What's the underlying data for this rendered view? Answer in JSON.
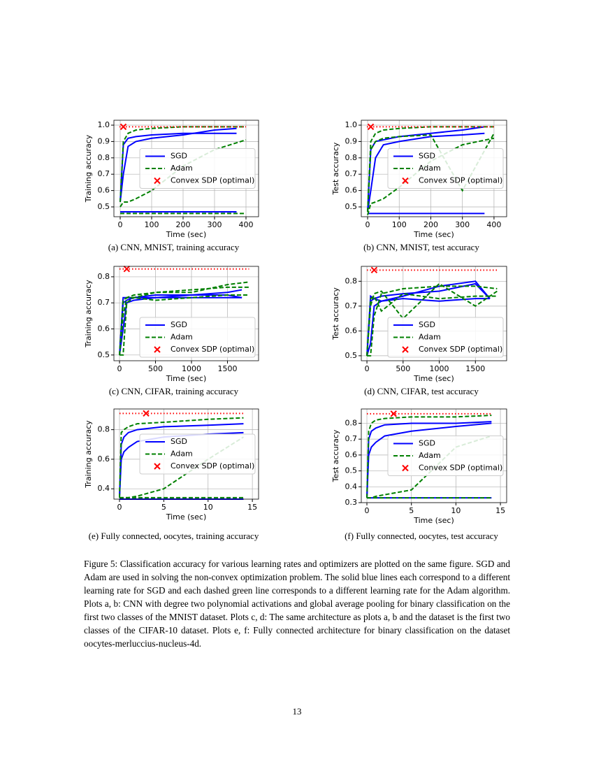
{
  "chart_data": [
    {
      "type": "line",
      "caption": "(a) CNN, MNIST, training accuracy",
      "xlabel": "Time (sec)",
      "ylabel": "Training accuracy",
      "xlim": [
        -20,
        440
      ],
      "ylim": [
        0.44,
        1.03
      ],
      "xticks": [
        0,
        100,
        200,
        300,
        400
      ],
      "yticks": [
        0.5,
        0.6,
        0.7,
        0.8,
        0.9,
        {
          "value": 1,
          "label": "1.0"
        }
      ],
      "grid": true,
      "legend": "center right",
      "series": [
        {
          "name": "SGD",
          "color": "#0000ff",
          "style": "solid",
          "x": [
            0,
            10,
            25,
            50,
            100,
            200,
            300,
            370
          ],
          "runs": [
            [
              0.53,
              0.88,
              0.92,
              0.93,
              0.94,
              0.95,
              0.95,
              0.95
            ],
            [
              0.53,
              0.7,
              0.87,
              0.9,
              0.92,
              0.94,
              0.97,
              0.98
            ],
            [
              0.47,
              0.47,
              0.47,
              0.47,
              0.47,
              0.47,
              0.47,
              0.47
            ]
          ]
        },
        {
          "name": "Adam",
          "color": "#008000",
          "style": "dashed",
          "x": [
            0,
            10,
            25,
            50,
            100,
            200,
            300,
            400
          ],
          "runs": [
            [
              0.53,
              0.9,
              0.95,
              0.97,
              0.98,
              0.99,
              0.99,
              0.99
            ],
            [
              0.5,
              0.53,
              0.53,
              0.55,
              0.6,
              0.75,
              0.85,
              0.91
            ],
            [
              0.46,
              0.46,
              0.46,
              0.46,
              0.46,
              0.46,
              0.46,
              0.46
            ]
          ]
        },
        {
          "name": "Convex SDP (optimal)",
          "color": "#ff0000",
          "marker": "x",
          "x": [
            10
          ],
          "values": [
            0.99
          ]
        }
      ]
    },
    {
      "type": "line",
      "caption": "(b) CNN, MNIST, test accuracy",
      "xlabel": "Time (sec)",
      "ylabel": "Test accuracy",
      "xlim": [
        -20,
        440
      ],
      "ylim": [
        0.44,
        1.03
      ],
      "xticks": [
        0,
        100,
        200,
        300,
        400
      ],
      "yticks": [
        0.5,
        0.6,
        0.7,
        0.8,
        0.9,
        {
          "value": 1,
          "label": "1.0"
        }
      ],
      "grid": true,
      "legend": "center right",
      "series": [
        {
          "name": "SGD",
          "color": "#0000ff",
          "style": "solid",
          "x": [
            0,
            10,
            25,
            50,
            100,
            200,
            300,
            370
          ],
          "runs": [
            [
              0.47,
              0.85,
              0.9,
              0.91,
              0.93,
              0.95,
              0.97,
              0.99
            ],
            [
              0.47,
              0.6,
              0.8,
              0.88,
              0.9,
              0.93,
              0.94,
              0.95
            ],
            [
              0.46,
              0.46,
              0.46,
              0.46,
              0.46,
              0.46,
              0.46,
              0.46
            ]
          ]
        },
        {
          "name": "Adam",
          "color": "#008000",
          "style": "dashed",
          "x": [
            0,
            10,
            25,
            50,
            100,
            200,
            300,
            400
          ],
          "runs": [
            [
              0.47,
              0.9,
              0.95,
              0.97,
              0.98,
              0.99,
              0.99,
              0.99
            ],
            [
              0.45,
              0.52,
              0.53,
              0.55,
              0.62,
              0.78,
              0.88,
              0.92
            ],
            [
              0.47,
              0.85,
              0.9,
              0.92,
              0.93,
              0.94,
              0.6,
              0.95
            ]
          ]
        },
        {
          "name": "Convex SDP (optimal)",
          "color": "#ff0000",
          "marker": "x",
          "x": [
            10
          ],
          "values": [
            0.99
          ]
        }
      ]
    },
    {
      "type": "line",
      "caption": "(c) CNN, CIFAR, training accuracy",
      "xlabel": "Time (sec)",
      "ylabel": "Training accuracy",
      "xlim": [
        -78,
        1932
      ],
      "ylim": [
        0.478,
        0.84
      ],
      "xticks": [
        0,
        500,
        1000,
        1500
      ],
      "yticks": [
        0.5,
        0.6,
        0.7,
        0.8
      ],
      "grid": true,
      "legend": "lower right",
      "series": [
        {
          "name": "SGD",
          "color": "#0000ff",
          "style": "solid",
          "x": [
            0,
            50,
            100,
            200,
            500,
            1000,
            1500,
            1700
          ],
          "runs": [
            [
              0.5,
              0.7,
              0.71,
              0.72,
              0.72,
              0.72,
              0.72,
              0.72
            ],
            [
              0.5,
              0.6,
              0.7,
              0.71,
              0.72,
              0.73,
              0.74,
              0.75
            ],
            [
              0.5,
              0.72,
              0.72,
              0.72,
              0.73,
              0.73,
              0.73,
              0.72
            ]
          ]
        },
        {
          "name": "Adam",
          "color": "#008000",
          "style": "dashed",
          "x": [
            0,
            50,
            100,
            200,
            500,
            1000,
            1500,
            1800
          ],
          "runs": [
            [
              0.5,
              0.5,
              0.7,
              0.72,
              0.74,
              0.75,
              0.76,
              0.76
            ],
            [
              0.5,
              0.65,
              0.72,
              0.73,
              0.74,
              0.74,
              0.77,
              0.78
            ],
            [
              0.5,
              0.71,
              0.72,
              0.72,
              0.71,
              0.72,
              0.73,
              0.73
            ]
          ]
        },
        {
          "name": "Convex SDP (optimal)",
          "color": "#ff0000",
          "marker": "x",
          "x": [
            100
          ],
          "values": [
            0.83
          ]
        }
      ]
    },
    {
      "type": "line",
      "caption": "(d) CNN, CIFAR, test accuracy",
      "xlabel": "Time (sec)",
      "ylabel": "Test accuracy",
      "xlim": [
        -78,
        1932
      ],
      "ylim": [
        0.48,
        0.86
      ],
      "xticks": [
        0,
        500,
        1000,
        1500
      ],
      "yticks": [
        0.5,
        0.6,
        0.7,
        0.8
      ],
      "grid": true,
      "legend": "lower right",
      "series": [
        {
          "name": "SGD",
          "color": "#0000ff",
          "style": "solid",
          "x": [
            0,
            50,
            100,
            200,
            500,
            1000,
            1500,
            1700
          ],
          "runs": [
            [
              0.5,
              0.72,
              0.73,
              0.74,
              0.75,
              0.76,
              0.79,
              0.73
            ],
            [
              0.5,
              0.55,
              0.7,
              0.72,
              0.74,
              0.78,
              0.8,
              0.73
            ],
            [
              0.5,
              0.74,
              0.73,
              0.72,
              0.73,
              0.72,
              0.73,
              0.73
            ]
          ]
        },
        {
          "name": "Adam",
          "color": "#008000",
          "style": "dashed",
          "x": [
            0,
            50,
            100,
            200,
            500,
            1000,
            1500,
            1800
          ],
          "runs": [
            [
              0.5,
              0.5,
              0.66,
              0.75,
              0.77,
              0.78,
              0.78,
              0.77
            ],
            [
              0.5,
              0.7,
              0.75,
              0.76,
              0.65,
              0.79,
              0.7,
              0.76
            ],
            [
              0.5,
              0.73,
              0.74,
              0.68,
              0.75,
              0.73,
              0.74,
              0.74
            ]
          ]
        },
        {
          "name": "Convex SDP (optimal)",
          "color": "#ff0000",
          "marker": "x",
          "x": [
            100
          ],
          "values": [
            0.845
          ]
        }
      ]
    },
    {
      "type": "line",
      "caption": "(e) Fully connected, oocytes, training accuracy",
      "xlabel": "Time (sec)",
      "ylabel": "Training accuracy",
      "xlim": [
        -0.63,
        15.7
      ],
      "ylim": [
        0.33,
        0.94
      ],
      "xticks": [
        0,
        5,
        10,
        15
      ],
      "yticks": [
        0.4,
        0.6,
        0.8
      ],
      "grid": true,
      "legend": "center right",
      "series": [
        {
          "name": "SGD",
          "color": "#0000ff",
          "style": "solid",
          "x": [
            0,
            0.2,
            0.5,
            1,
            2,
            5,
            10,
            14
          ],
          "runs": [
            [
              0.34,
              0.7,
              0.75,
              0.78,
              0.8,
              0.82,
              0.83,
              0.84
            ],
            [
              0.34,
              0.6,
              0.65,
              0.68,
              0.72,
              0.75,
              0.77,
              0.78
            ],
            [
              0.33,
              0.33,
              0.33,
              0.33,
              0.33,
              0.33,
              0.33,
              0.33
            ]
          ]
        },
        {
          "name": "Adam",
          "color": "#008000",
          "style": "dashed",
          "x": [
            0,
            0.2,
            0.5,
            1,
            2,
            5,
            10,
            14
          ],
          "runs": [
            [
              0.34,
              0.78,
              0.8,
              0.82,
              0.84,
              0.85,
              0.87,
              0.88
            ],
            [
              0.34,
              0.34,
              0.34,
              0.34,
              0.35,
              0.4,
              0.6,
              0.75
            ],
            [
              0.34,
              0.34,
              0.34,
              0.34,
              0.34,
              0.34,
              0.34,
              0.34
            ]
          ]
        },
        {
          "name": "Convex SDP (optimal)",
          "color": "#ff0000",
          "marker": "x",
          "x": [
            3
          ],
          "values": [
            0.91
          ]
        }
      ]
    },
    {
      "type": "line",
      "caption": "(f) Fully connected, oocytes, test accuracy",
      "xlabel": "Time (sec)",
      "ylabel": "Test accuracy",
      "xlim": [
        -0.63,
        15.7
      ],
      "ylim": [
        0.3,
        0.89
      ],
      "xticks": [
        0,
        5,
        10,
        15
      ],
      "yticks": [
        0.3,
        0.4,
        0.5,
        0.6,
        0.7,
        0.8
      ],
      "grid": true,
      "legend": "center right",
      "series": [
        {
          "name": "SGD",
          "color": "#0000ff",
          "style": "solid",
          "x": [
            0,
            0.2,
            0.5,
            1,
            2,
            5,
            10,
            14
          ],
          "runs": [
            [
              0.33,
              0.7,
              0.75,
              0.77,
              0.79,
              0.8,
              0.8,
              0.81
            ],
            [
              0.33,
              0.6,
              0.65,
              0.68,
              0.72,
              0.75,
              0.78,
              0.8
            ],
            [
              0.33,
              0.33,
              0.33,
              0.33,
              0.33,
              0.33,
              0.33,
              0.33
            ]
          ]
        },
        {
          "name": "Adam",
          "color": "#008000",
          "style": "dashed",
          "x": [
            0,
            0.2,
            0.5,
            1,
            2,
            5,
            10,
            14
          ],
          "runs": [
            [
              0.33,
              0.75,
              0.8,
              0.82,
              0.83,
              0.84,
              0.84,
              0.85
            ],
            [
              0.33,
              0.33,
              0.33,
              0.34,
              0.35,
              0.38,
              0.65,
              0.72
            ],
            [
              0.33,
              0.33,
              0.33,
              0.33,
              0.33,
              0.33,
              0.33,
              0.33
            ]
          ]
        },
        {
          "name": "Convex SDP (optimal)",
          "color": "#ff0000",
          "marker": "x",
          "x": [
            3
          ],
          "values": [
            0.86
          ]
        }
      ]
    }
  ],
  "caption": "Figure 5: Classification accuracy for various learning rates and optimizers are plotted on the same figure. SGD and Adam are used in solving the non-convex optimization problem. The solid blue lines each correspond to a different learning rate for SGD and each dashed green line corresponds to a different learning rate for the Adam algorithm. Plots a, b: CNN with degree two polynomial activations and global average pooling for binary classification on the first two classes of the MNIST dataset. Plots c, d: The same architecture as plots a, b and the dataset is the first two classes of the CIFAR-10 dataset. Plots e, f: Fully connected architecture for binary classification on the dataset oocytes-merluccius-nucleus-4d.",
  "page_number": "13"
}
